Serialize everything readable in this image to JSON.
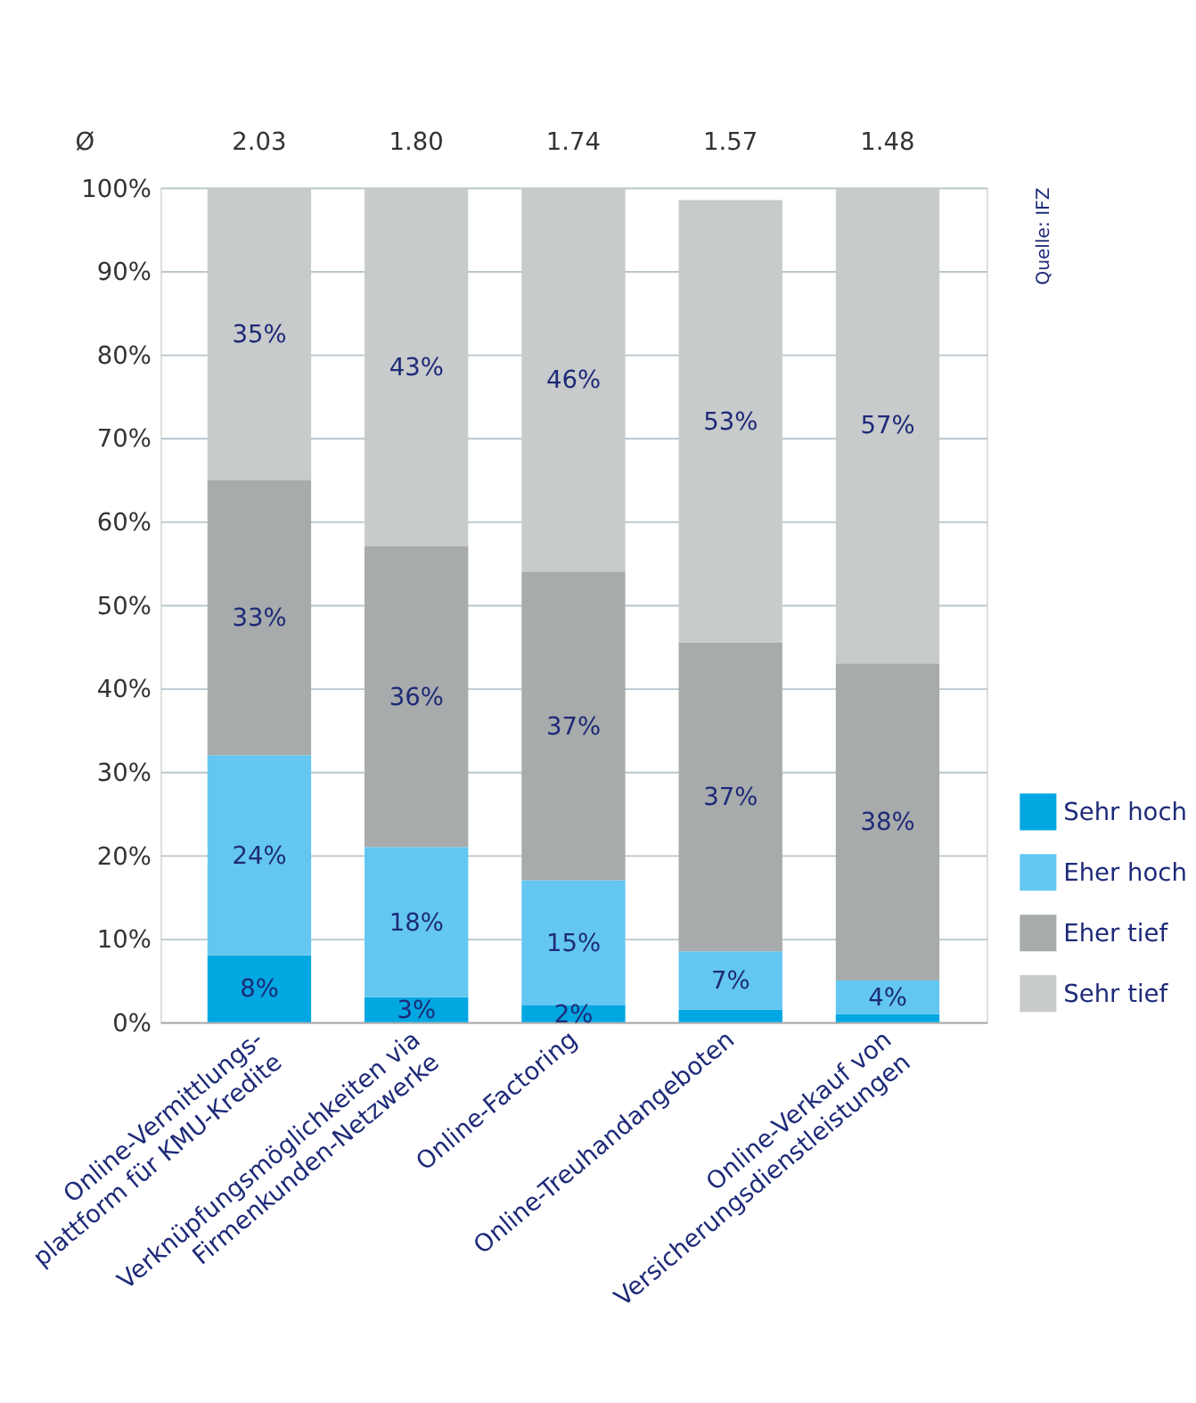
{
  "chart_data": {
    "type": "bar",
    "stacked": true,
    "categories": [
      "Online-Vermittlungs-\nplattform für KMU-Kredite",
      "Verknüpfungsmöglichkeiten via\nFirmenkunden-Netzwerke",
      "Online-Factoring",
      "Online-Treuhandangeboten",
      "Online-Verkauf von\nVersicherungsdienstleistungen"
    ],
    "series": [
      {
        "name": "Sehr hoch",
        "color": "#00a7e1",
        "values": [
          8,
          3,
          2,
          1.5,
          1
        ],
        "value_labels": [
          "8%",
          "3%",
          "2%",
          null,
          null
        ]
      },
      {
        "name": "Eher hoch",
        "color": "#63c7f1",
        "values": [
          24,
          18,
          15,
          7,
          4
        ],
        "value_labels": [
          "24%",
          "18%",
          "15%",
          "7%",
          "4%"
        ]
      },
      {
        "name": "Eher tief",
        "color": "#a7abab",
        "values": [
          33,
          36,
          37,
          37,
          38
        ],
        "value_labels": [
          "33%",
          "36%",
          "37%",
          "37%",
          "38%"
        ]
      },
      {
        "name": "Sehr tief",
        "color": "#c8cbcb",
        "values": [
          35,
          43,
          46,
          53,
          57
        ],
        "value_labels": [
          "35%",
          "43%",
          "46%",
          "53%",
          "57%"
        ]
      }
    ],
    "ylim": [
      0,
      100
    ],
    "yticks": [
      {
        "value": 0,
        "label": "0%"
      },
      {
        "value": 10,
        "label": "10%"
      },
      {
        "value": 20,
        "label": "20%"
      },
      {
        "value": 30,
        "label": "30%"
      },
      {
        "value": 40,
        "label": "40%"
      },
      {
        "value": 50,
        "label": "50%"
      },
      {
        "value": 60,
        "label": "60%"
      },
      {
        "value": 70,
        "label": "70%"
      },
      {
        "value": 80,
        "label": "80%"
      },
      {
        "value": 90,
        "label": "90%"
      },
      {
        "value": 100,
        "label": "100%"
      }
    ],
    "grid": "y",
    "legend": "right",
    "annotations": [
      "Ø",
      "2.03",
      "1.80",
      "1.74",
      "1.57",
      "1.48",
      "Quelle: IFZ"
    ]
  }
}
